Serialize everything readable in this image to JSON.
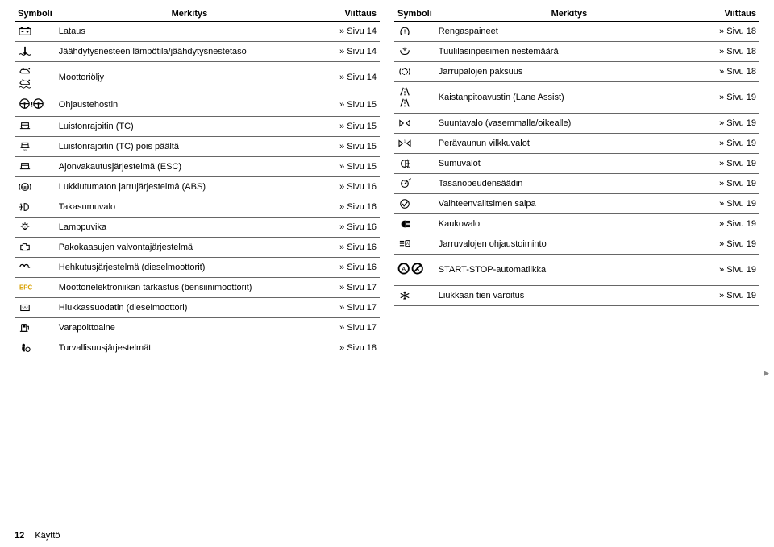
{
  "headers": {
    "symboli": "Symboli",
    "merkitys": "Merkitys",
    "viittaus": "Viittaus"
  },
  "footer": {
    "page": "12",
    "section": "Käyttö"
  },
  "left": [
    {
      "icon": "battery",
      "label": "Lataus",
      "ref": "Sivu 14"
    },
    {
      "icon": "coolant",
      "label": "Jäähdytysnesteen lämpötila/jäähdytysnestetaso",
      "ref": "Sivu 14"
    },
    {
      "icon": "oil2",
      "label": "Moottoriöljy",
      "ref": "Sivu 14"
    },
    {
      "icon": "steer2",
      "label": "Ohjaustehostin",
      "ref": "Sivu 15"
    },
    {
      "icon": "tc",
      "label": "Luistonrajoitin (TC)",
      "ref": "Sivu 15"
    },
    {
      "icon": "tcoff",
      "label": "Luistonrajoitin (TC) pois päältä",
      "ref": "Sivu 15"
    },
    {
      "icon": "esc",
      "label": "Ajonvakautusjärjestelmä (ESC)",
      "ref": "Sivu 15"
    },
    {
      "icon": "abs",
      "label": "Lukkiutumaton jarrujärjestelmä (ABS)",
      "ref": "Sivu 16"
    },
    {
      "icon": "rearfog",
      "label": "Takasumuvalo",
      "ref": "Sivu 16"
    },
    {
      "icon": "bulb",
      "label": "Lamppuvika",
      "ref": "Sivu 16"
    },
    {
      "icon": "engine",
      "label": "Pakokaasujen valvontajärjestelmä",
      "ref": "Sivu 16"
    },
    {
      "icon": "glow",
      "label": "Hehkutusjärjestelmä (dieselmoottorit)",
      "ref": "Sivu 16"
    },
    {
      "icon": "epc",
      "label": "Moottorielektroniikan tarkastus (bensiinimoottorit)",
      "ref": "Sivu 17"
    },
    {
      "icon": "dpf",
      "label": "Hiukkassuodatin (dieselmoottori)",
      "ref": "Sivu 17"
    },
    {
      "icon": "fuel",
      "label": "Varapolttoaine",
      "ref": "Sivu 17"
    },
    {
      "icon": "airbag",
      "label": "Turvallisuusjärjestelmät",
      "ref": "Sivu 18"
    }
  ],
  "right": [
    {
      "icon": "tpms",
      "label": "Rengaspaineet",
      "ref": "Sivu 18"
    },
    {
      "icon": "washer",
      "label": "Tuulilasinpesimen nestemäärä",
      "ref": "Sivu 18"
    },
    {
      "icon": "brakepad",
      "label": "Jarrupalojen paksuus",
      "ref": "Sivu 18"
    },
    {
      "icon": "lane2",
      "label": "Kaistanpitoavustin (Lane Assist)",
      "ref": "Sivu 19"
    },
    {
      "icon": "turn",
      "label": "Suuntavalo (vasemmalle/oikealle)",
      "ref": "Sivu 19"
    },
    {
      "icon": "trailer",
      "label": "Perävaunun vilkkuvalot",
      "ref": "Sivu 19"
    },
    {
      "icon": "frontfog",
      "label": "Sumuvalot",
      "ref": "Sivu 19"
    },
    {
      "icon": "cruise",
      "label": "Tasanopeudensäädin",
      "ref": "Sivu 19"
    },
    {
      "icon": "gearlock",
      "label": "Vaihteenvalitsimen salpa",
      "ref": "Sivu 19"
    },
    {
      "icon": "highbeam",
      "label": "Kaukovalo",
      "ref": "Sivu 19"
    },
    {
      "icon": "lightctrl",
      "label": "Jarruvalojen ohjaustoiminto",
      "ref": "Sivu 19"
    },
    {
      "icon": "startstop",
      "label": "START-STOP-automatiikka",
      "ref": "Sivu 19"
    },
    {
      "icon": "ice",
      "label": "Liukkaan tien varoitus",
      "ref": "Sivu 19"
    }
  ]
}
